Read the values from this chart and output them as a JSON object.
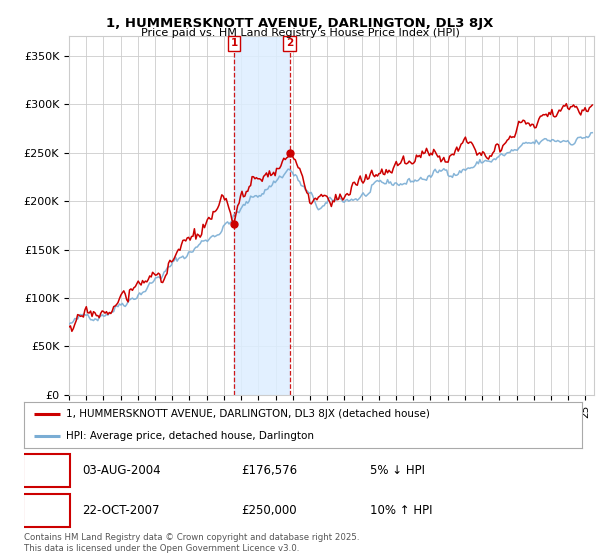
{
  "title": "1, HUMMERSKNOTT AVENUE, DARLINGTON, DL3 8JX",
  "subtitle": "Price paid vs. HM Land Registry's House Price Index (HPI)",
  "ylabel_ticks": [
    "£0",
    "£50K",
    "£100K",
    "£150K",
    "£200K",
    "£250K",
    "£300K",
    "£350K"
  ],
  "ytick_vals": [
    0,
    50000,
    100000,
    150000,
    200000,
    250000,
    300000,
    350000
  ],
  "ylim": [
    0,
    370000
  ],
  "xlim_start": 1995.0,
  "xlim_end": 2025.5,
  "sale1": {
    "date_num": 2004.583,
    "price": 176576,
    "label": "1",
    "text": "03-AUG-2004",
    "price_str": "£176,576",
    "hpi_str": "5% ↓ HPI"
  },
  "sale2": {
    "date_num": 2007.81,
    "price": 250000,
    "label": "2",
    "text": "22-OCT-2007",
    "price_str": "£250,000",
    "hpi_str": "10% ↑ HPI"
  },
  "legend_line1": "1, HUMMERSKNOTT AVENUE, DARLINGTON, DL3 8JX (detached house)",
  "legend_line2": "HPI: Average price, detached house, Darlington",
  "footer": "Contains HM Land Registry data © Crown copyright and database right 2025.\nThis data is licensed under the Open Government Licence v3.0.",
  "red_color": "#cc0000",
  "blue_color": "#7aadd4",
  "bg_color": "#ffffff",
  "grid_color": "#cccccc",
  "shade_color": "#ddeeff",
  "box_color": "#cc0000"
}
